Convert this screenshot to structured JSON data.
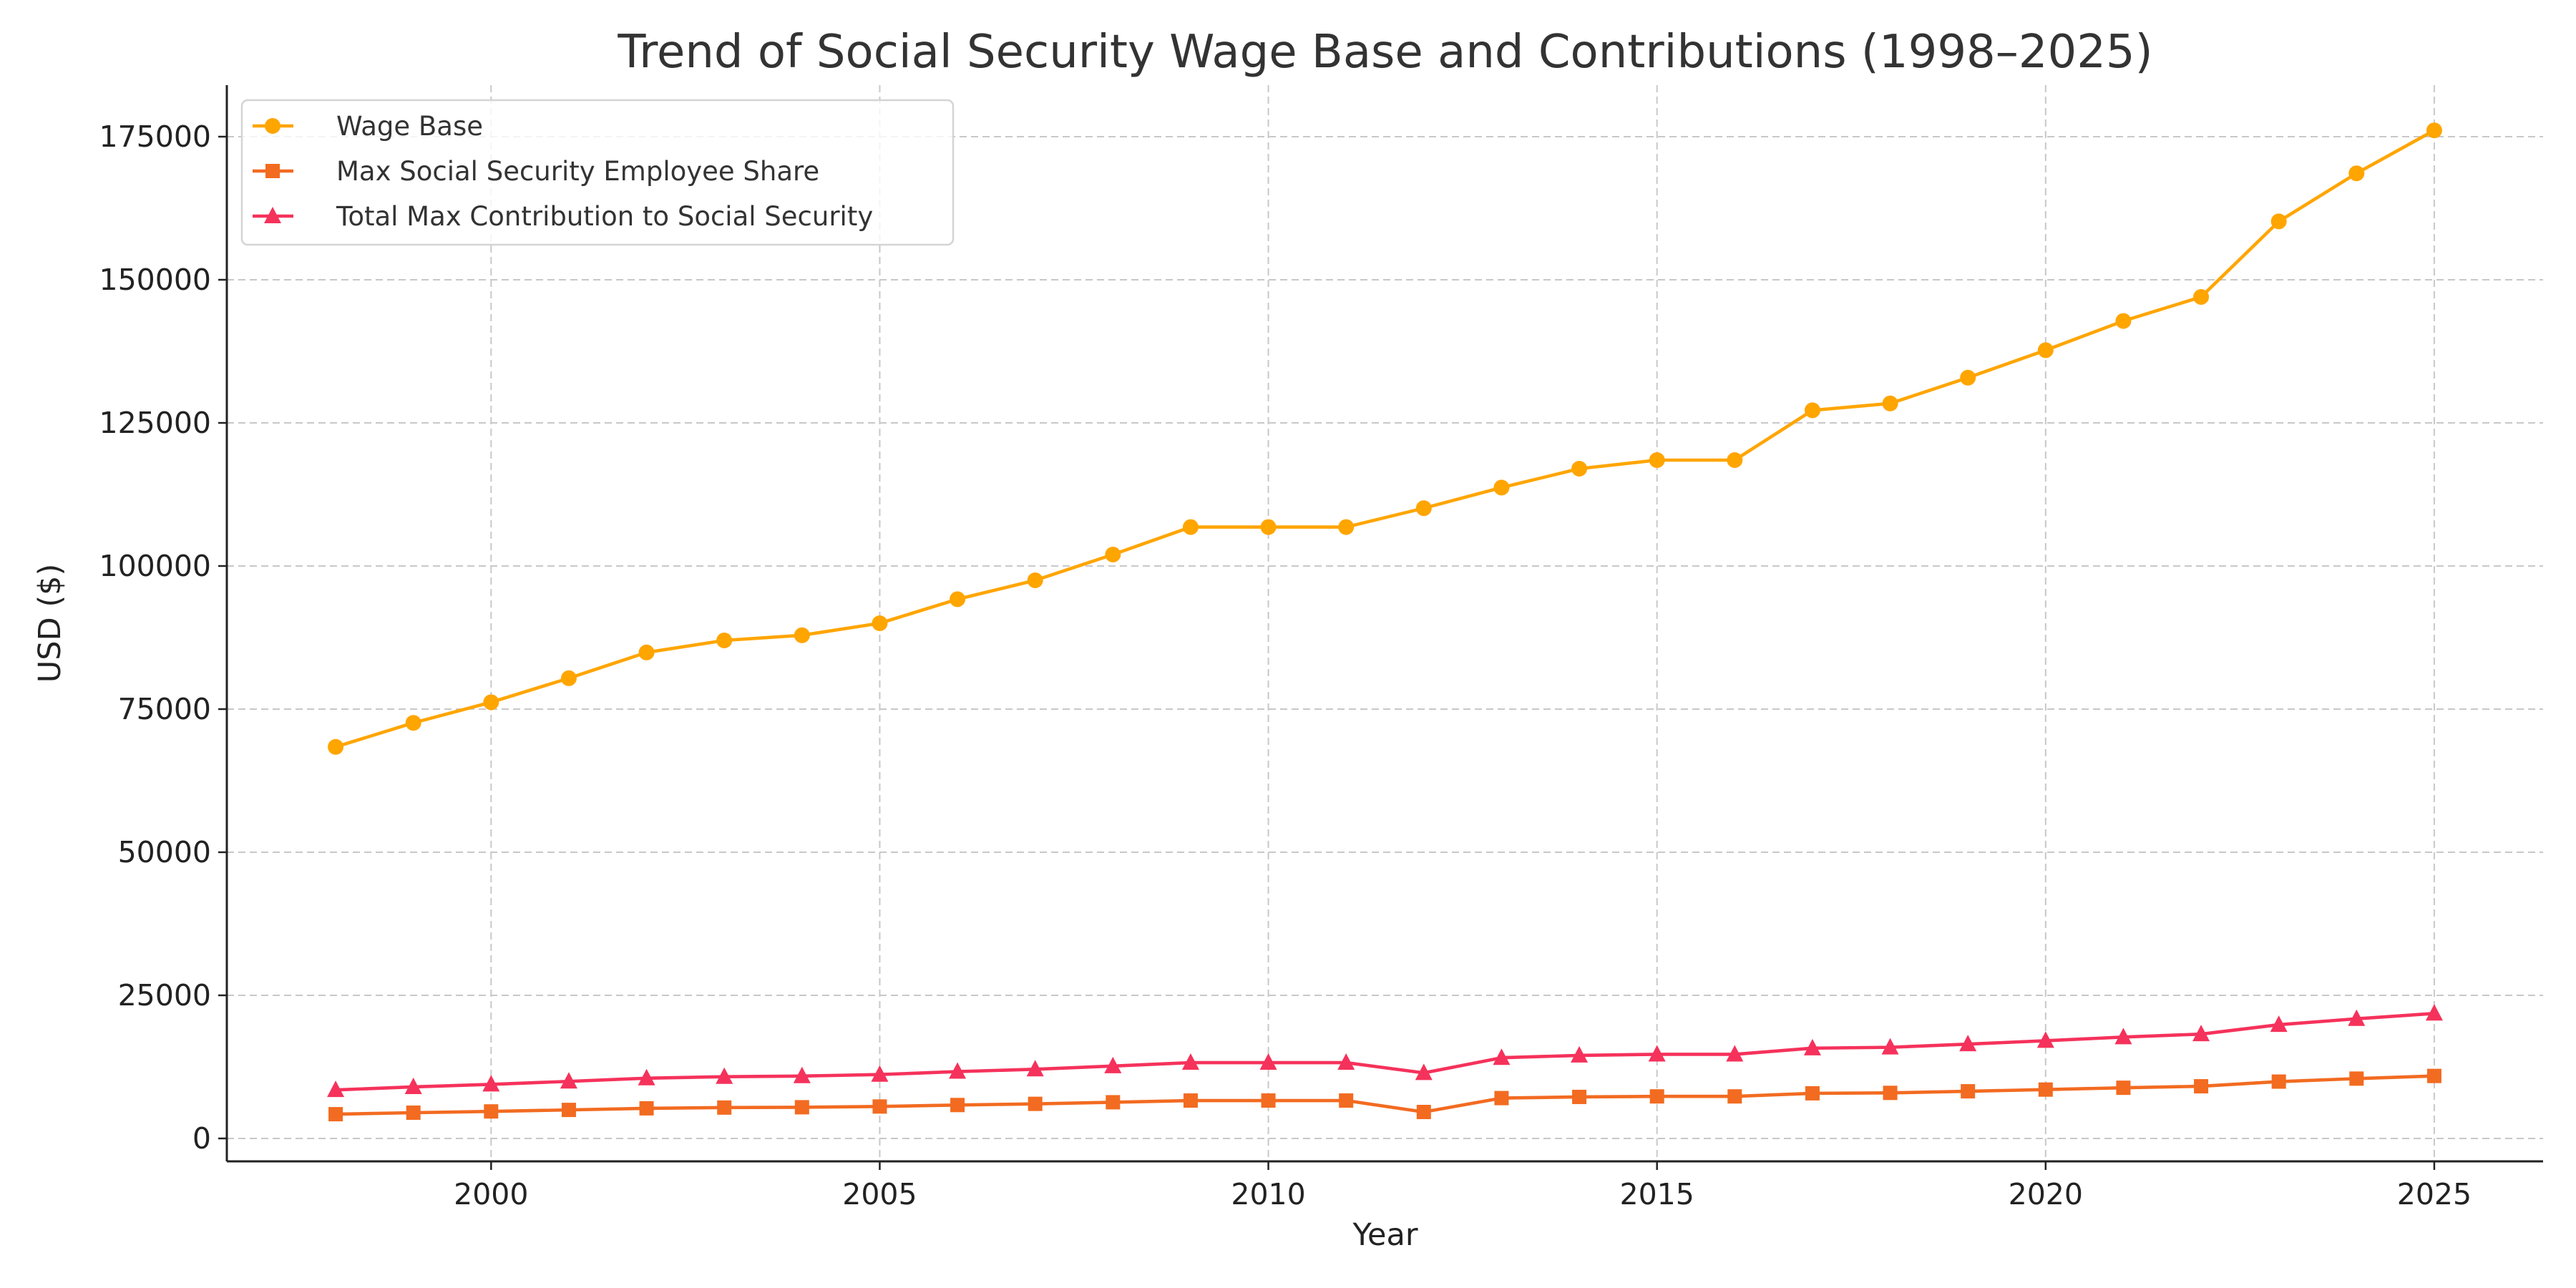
{
  "chart_data": {
    "type": "line",
    "title": "Trend of Social Security Wage Base and Contributions (1998–2025)",
    "xlabel": "Year",
    "ylabel": "USD ($)",
    "xlim": [
      1996.6,
      2026.4
    ],
    "ylim": [
      -4000,
      184000
    ],
    "xticks": [
      2000,
      2005,
      2010,
      2015,
      2020,
      2025
    ],
    "yticks": [
      0,
      25000,
      50000,
      75000,
      100000,
      125000,
      150000,
      175000
    ],
    "grid": true,
    "legend_position": "top-left",
    "x": [
      1998,
      1999,
      2000,
      2001,
      2002,
      2003,
      2004,
      2005,
      2006,
      2007,
      2008,
      2009,
      2010,
      2011,
      2012,
      2013,
      2014,
      2015,
      2016,
      2017,
      2018,
      2019,
      2020,
      2021,
      2022,
      2023,
      2024,
      2025
    ],
    "series": [
      {
        "name": "Wage Base",
        "color": "#FFA500",
        "marker": "circle",
        "values": [
          68400,
          72600,
          76200,
          80400,
          84900,
          87000,
          87900,
          90000,
          94200,
          97500,
          102000,
          106800,
          106800,
          106800,
          110100,
          113700,
          117000,
          118500,
          118500,
          127200,
          128400,
          132900,
          137700,
          142800,
          147000,
          160200,
          168600,
          176100
        ]
      },
      {
        "name": "Max Social Security Employee Share",
        "color": "#F26B21",
        "marker": "square",
        "values": [
          4240.8,
          4501.2,
          4724.4,
          4984.8,
          5263.8,
          5394,
          5449.8,
          5580,
          5840.4,
          6045,
          6324,
          6621.6,
          6621.6,
          6621.6,
          4624.2,
          7049.4,
          7254,
          7347,
          7347,
          7886.4,
          7960.8,
          8239.8,
          8537.4,
          8853.6,
          9114,
          9932.4,
          10453.2,
          10918.2
        ]
      },
      {
        "name": "Total Max Contribution to Social Security",
        "color": "#F5325B",
        "marker": "triangle",
        "values": [
          8481.6,
          9002.4,
          9448.8,
          9969.6,
          10527.6,
          10788,
          10899.6,
          11160,
          11680.8,
          12090,
          12648,
          13243.2,
          13243.2,
          13243.2,
          11450.4,
          14098.8,
          14508,
          14694,
          14694,
          15772.8,
          15921.6,
          16479.6,
          17074.8,
          17707.2,
          18228,
          19864.8,
          20906.4,
          21836.4
        ]
      }
    ]
  }
}
